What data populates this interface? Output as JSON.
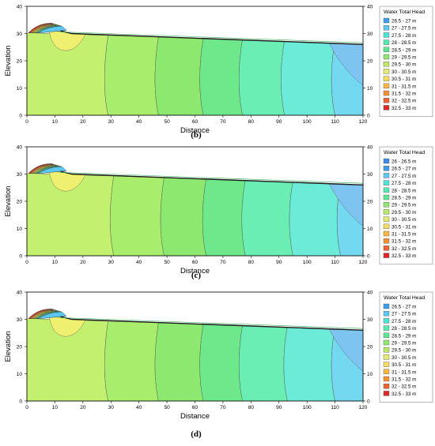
{
  "chart_data": [
    {
      "type": "heatmap",
      "caption": "(b)",
      "xlabel": "Distance",
      "ylabel": "Elevation",
      "xlim": [
        0,
        120
      ],
      "ylim": [
        0,
        40
      ],
      "x_ticks": [
        "0",
        "10",
        "20",
        "30",
        "40",
        "50",
        "60",
        "70",
        "80",
        "90",
        "100",
        "110",
        "120"
      ],
      "y_ticks": [
        "0",
        "10",
        "20",
        "30",
        "40"
      ],
      "legend": {
        "title": "Water Total Head",
        "items": [
          {
            "label": "26.5 - 27 m",
            "color": "#3a9ee8"
          },
          {
            "label": "27 - 27.5 m",
            "color": "#5ac8f0"
          },
          {
            "label": "27.5 - 28 m",
            "color": "#49e6d6"
          },
          {
            "label": "28 - 28.5 m",
            "color": "#52ecb0"
          },
          {
            "label": "28.5 - 29 m",
            "color": "#5ce890"
          },
          {
            "label": "29 - 29.5 m",
            "color": "#8ce870"
          },
          {
            "label": "29.5 - 30 m",
            "color": "#bce868"
          },
          {
            "label": "30 - 30.5 m",
            "color": "#e8ea70"
          },
          {
            "label": "30.5 - 31 m",
            "color": "#f4dc60"
          },
          {
            "label": "31 - 31.5 m",
            "color": "#f8b840"
          },
          {
            "label": "31.5 - 32 m",
            "color": "#f89030"
          },
          {
            "label": "32 - 32.5 m",
            "color": "#f06030"
          },
          {
            "label": "32.5 - 33 m",
            "color": "#e02828"
          }
        ]
      },
      "boundaries_x": [
        29,
        47,
        63,
        77,
        92,
        110
      ],
      "zone_colors": [
        "#c4f070",
        "#a8ee6c",
        "#8ce86e",
        "#6ee88a",
        "#6aeeb4",
        "#6cecd8",
        "#74d8f0"
      ]
    },
    {
      "type": "heatmap",
      "caption": "(c)",
      "xlabel": "Distance",
      "ylabel": "Elevation",
      "xlim": [
        0,
        120
      ],
      "ylim": [
        0,
        40
      ],
      "x_ticks": [
        "0",
        "10",
        "20",
        "30",
        "40",
        "50",
        "60",
        "70",
        "80",
        "90",
        "100",
        "110",
        "120"
      ],
      "y_ticks": [
        "0",
        "10",
        "20",
        "30",
        "40"
      ],
      "legend": {
        "title": "Water Total Head",
        "items": [
          {
            "label": "26 - 26.5 m",
            "color": "#3a8ae8"
          },
          {
            "label": "26.5 - 27 m",
            "color": "#3a9ee8"
          },
          {
            "label": "27 - 27.5 m",
            "color": "#5ac8f0"
          },
          {
            "label": "27.5 - 28 m",
            "color": "#49e6d6"
          },
          {
            "label": "28 - 28.5 m",
            "color": "#52ecb0"
          },
          {
            "label": "28.5 - 29 m",
            "color": "#5ce890"
          },
          {
            "label": "29 - 29.5 m",
            "color": "#8ce870"
          },
          {
            "label": "29.5 - 30 m",
            "color": "#bce868"
          },
          {
            "label": "30 - 30.5 m",
            "color": "#e8ea70"
          },
          {
            "label": "30.5 - 31 m",
            "color": "#f4dc60"
          },
          {
            "label": "31 - 31.5 m",
            "color": "#f8b840"
          },
          {
            "label": "31.5 - 32 m",
            "color": "#f89030"
          },
          {
            "label": "32 - 32.5 m",
            "color": "#f06030"
          },
          {
            "label": "32.5 - 33 m",
            "color": "#e02828"
          }
        ]
      },
      "boundaries_x": [
        31,
        49,
        64,
        78,
        95,
        112
      ],
      "zone_colors": [
        "#c4f070",
        "#a8ee6c",
        "#8ce86e",
        "#6ee88a",
        "#6aeeb4",
        "#6cecd8",
        "#74d8f0"
      ]
    },
    {
      "type": "heatmap",
      "caption": "(d)",
      "xlabel": "Distance",
      "ylabel": "Elevation",
      "xlim": [
        0,
        120
      ],
      "ylim": [
        0,
        40
      ],
      "x_ticks": [
        "0",
        "10",
        "20",
        "30",
        "40",
        "50",
        "60",
        "70",
        "80",
        "90",
        "100",
        "110",
        "120"
      ],
      "y_ticks": [
        "0",
        "10",
        "20",
        "30",
        "40"
      ],
      "legend": {
        "title": "Water Total Head",
        "items": [
          {
            "label": "26.5 - 27 m",
            "color": "#3a9ee8"
          },
          {
            "label": "27 - 27.5 m",
            "color": "#5ac8f0"
          },
          {
            "label": "27.5 - 28 m",
            "color": "#49e6d6"
          },
          {
            "label": "28 - 28.5 m",
            "color": "#52ecb0"
          },
          {
            "label": "28.5 - 29 m",
            "color": "#5ce890"
          },
          {
            "label": "29 - 29.5 m",
            "color": "#8ce870"
          },
          {
            "label": "29.5 - 30 m",
            "color": "#bce868"
          },
          {
            "label": "30 - 30.5 m",
            "color": "#e8ea70"
          },
          {
            "label": "30.5 - 31 m",
            "color": "#f4dc60"
          },
          {
            "label": "31 - 31.5 m",
            "color": "#f8b840"
          },
          {
            "label": "31.5 - 32 m",
            "color": "#f89030"
          },
          {
            "label": "32 - 32.5 m",
            "color": "#f06030"
          },
          {
            "label": "32.5 - 33 m",
            "color": "#e02828"
          }
        ]
      },
      "boundaries_x": [
        29,
        47,
        63,
        77,
        93,
        110
      ],
      "zone_colors": [
        "#c4f070",
        "#a8ee6c",
        "#8ce86e",
        "#6ee88a",
        "#6aeeb4",
        "#6cecd8",
        "#74d8f0"
      ]
    }
  ]
}
